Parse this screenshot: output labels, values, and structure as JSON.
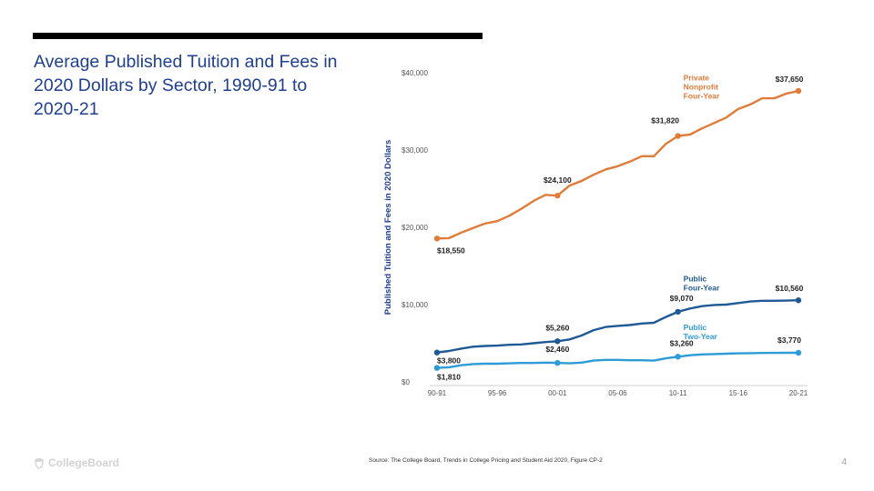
{
  "slide": {
    "title": "Average Published Tuition and Fees in 2020 Dollars by Sector, 1990-91 to 2020-21",
    "source": "Source: The College Board, Trends in College Pricing and Student Aid 2020, Figure CP-2",
    "page_number": "4",
    "logo_text": "CollegeBoard"
  },
  "colors": {
    "title": "#1f3f8f",
    "private": "#e07b39",
    "public_four": "#1f5a96",
    "public_two": "#2e9bd6",
    "axis_text": "#555555",
    "grid": "#dddddd"
  },
  "chart_data": {
    "type": "line",
    "title": "",
    "xlabel": "",
    "ylabel": "Published Tuition and Fees in 2020 Dollars",
    "ylim": [
      0,
      40000
    ],
    "yticks": [
      0,
      10000,
      20000,
      30000,
      40000
    ],
    "ytick_labels": [
      "$0",
      "$10,000",
      "$20,000",
      "$30,000",
      "$40,000"
    ],
    "xticks": [
      0,
      5,
      10,
      15,
      20,
      25,
      30
    ],
    "xtick_labels": [
      "90-91",
      "95-96",
      "00-01",
      "05-06",
      "10-11",
      "15-16",
      "20-21"
    ],
    "grid": false,
    "series": [
      {
        "name": "Private Nonprofit Four-Year",
        "legend_lines": [
          "Private",
          "Nonprofit",
          "Four-Year"
        ],
        "color": "#e07b39",
        "values": [
          18550,
          18600,
          19300,
          19900,
          20500,
          20800,
          21500,
          22400,
          23400,
          24200,
          24100,
          25400,
          26000,
          26800,
          27500,
          27900,
          28500,
          29200,
          29200,
          30800,
          31820,
          32000,
          32800,
          33500,
          34200,
          35300,
          35900,
          36700,
          36700,
          37300,
          37650
        ],
        "labeled_points": [
          {
            "index": 0,
            "label": "$18,550"
          },
          {
            "index": 10,
            "label": "$24,100"
          },
          {
            "index": 20,
            "label": "$31,820"
          },
          {
            "index": 30,
            "label": "$37,650"
          }
        ]
      },
      {
        "name": "Public Four-Year",
        "legend_lines": [
          "Public",
          "Four-Year"
        ],
        "color": "#1f5a96",
        "values": [
          3800,
          4000,
          4300,
          4550,
          4650,
          4700,
          4800,
          4850,
          5000,
          5150,
          5260,
          5500,
          6000,
          6700,
          7100,
          7250,
          7350,
          7550,
          7650,
          8400,
          9070,
          9500,
          9800,
          9950,
          10000,
          10200,
          10400,
          10500,
          10500,
          10520,
          10560
        ],
        "labeled_points": [
          {
            "index": 0,
            "label": "$3,800"
          },
          {
            "index": 10,
            "label": "$5,260"
          },
          {
            "index": 20,
            "label": "$9,070"
          },
          {
            "index": 30,
            "label": "$10,560"
          }
        ]
      },
      {
        "name": "Public Two-Year",
        "legend_lines": [
          "Public",
          "Two-Year"
        ],
        "color": "#2e9bd6",
        "values": [
          1810,
          1900,
          2150,
          2300,
          2350,
          2350,
          2400,
          2450,
          2450,
          2500,
          2460,
          2400,
          2500,
          2750,
          2850,
          2850,
          2800,
          2800,
          2750,
          3050,
          3260,
          3450,
          3550,
          3600,
          3650,
          3700,
          3720,
          3740,
          3750,
          3760,
          3770
        ],
        "labeled_points": [
          {
            "index": 0,
            "label": "$1,810"
          },
          {
            "index": 10,
            "label": "$2,460"
          },
          {
            "index": 20,
            "label": "$3,260"
          },
          {
            "index": 30,
            "label": "$3,770"
          }
        ]
      }
    ]
  }
}
